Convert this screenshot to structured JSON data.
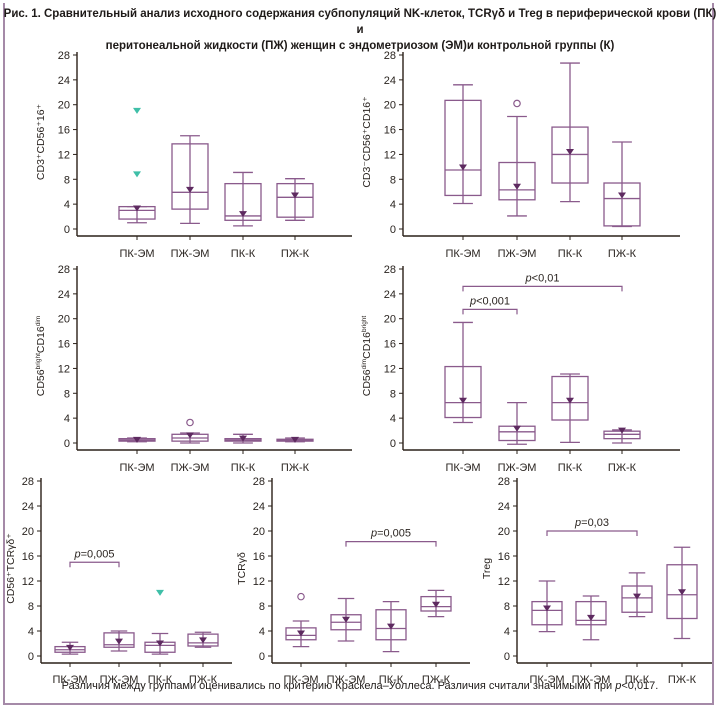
{
  "figure": {
    "title_line1": "Рис. 1. Сравнительный анализ исходного содержания субпопуляций NK-клеток, TCRγδ и Treg в периферической крови (ПК) и",
    "title_line2": "перитонеальной жидкости (ПЖ) женщин с эндометриозом  (ЭМ)и контрольной группы (К)",
    "footnote_prefix": "Различия между группами оценивались по критерию Краскела–Уоллеса. Различия считали значимыми при ",
    "footnote_p": "p",
    "footnote_suffix": "<0,017."
  },
  "colors": {
    "box": "#8a5a8c",
    "mean_marker": "#5e2a60",
    "outlier_extreme": "#3fbfa8",
    "axis": "#2a2018",
    "frame": "#a58aa8",
    "bracket": "#8a5a8c"
  },
  "chart_data": [
    {
      "type": "boxplot",
      "id": "cd3-cd56-16",
      "ylabel": "CD3⁺CD56⁺16⁺",
      "ylim": [
        0,
        28
      ],
      "yticks": [
        0,
        4,
        8,
        12,
        16,
        20,
        24,
        28
      ],
      "categories": [
        "ПК-ЭМ",
        "ПЖ-ЭМ",
        "ПК-К",
        "ПЖ-К"
      ],
      "boxes": [
        {
          "whisker_low": 1.0,
          "q1": 1.6,
          "median": 3.0,
          "q3": 3.6,
          "whisker_high": 3.6,
          "mean": 3.3,
          "outliers": [],
          "extremes": [
            19.0,
            8.8
          ]
        },
        {
          "whisker_low": 0.9,
          "q1": 3.2,
          "median": 5.9,
          "q3": 13.7,
          "whisker_high": 15.0,
          "mean": 6.3,
          "outliers": [],
          "extremes": []
        },
        {
          "whisker_low": 0.5,
          "q1": 1.4,
          "median": 2.1,
          "q3": 7.3,
          "whisker_high": 9.1,
          "mean": 2.4,
          "outliers": [],
          "extremes": []
        },
        {
          "whisker_low": 1.4,
          "q1": 1.9,
          "median": 5.1,
          "q3": 7.3,
          "whisker_high": 8.1,
          "mean": 5.4,
          "outliers": [],
          "extremes": []
        }
      ],
      "annotations": []
    },
    {
      "type": "boxplot",
      "id": "cd3neg-cd56-16",
      "ylabel": "CD3⁻CD56⁺CD16⁺",
      "ylim": [
        0,
        28
      ],
      "yticks": [
        0,
        4,
        8,
        12,
        16,
        20,
        24,
        28
      ],
      "categories": [
        "ПК-ЭМ",
        "ПЖ-ЭМ",
        "ПК-К",
        "ПЖ-К"
      ],
      "boxes": [
        {
          "whisker_low": 4.1,
          "q1": 5.4,
          "median": 9.5,
          "q3": 20.7,
          "whisker_high": 23.2,
          "mean": 9.9,
          "outliers": [],
          "extremes": []
        },
        {
          "whisker_low": 2.1,
          "q1": 4.7,
          "median": 6.3,
          "q3": 10.7,
          "whisker_high": 18.1,
          "mean": 6.8,
          "outliers": [
            20.2
          ],
          "extremes": []
        },
        {
          "whisker_low": 4.4,
          "q1": 7.4,
          "median": 12.0,
          "q3": 16.4,
          "whisker_high": 26.7,
          "mean": 12.4,
          "outliers": [],
          "extremes": []
        },
        {
          "whisker_low": 0.4,
          "q1": 0.5,
          "median": 4.9,
          "q3": 7.4,
          "whisker_high": 14.0,
          "mean": 5.4,
          "outliers": [],
          "extremes": []
        }
      ],
      "annotations": []
    },
    {
      "type": "boxplot",
      "id": "cd56bright-cd16dim",
      "ylabel": "CD56",
      "ylabel_sup1": "bright",
      "ylabel_mid": "CD16",
      "ylabel_sup2": "dim",
      "ylim": [
        0,
        28
      ],
      "yticks": [
        0,
        4,
        8,
        12,
        16,
        20,
        24,
        28
      ],
      "categories": [
        "ПК-ЭМ",
        "ПЖ-ЭМ",
        "ПК-К",
        "ПЖ-К"
      ],
      "boxes": [
        {
          "whisker_low": 0.2,
          "q1": 0.3,
          "median": 0.5,
          "q3": 0.7,
          "whisker_high": 0.8,
          "mean": 0.5,
          "outliers": [],
          "extremes": []
        },
        {
          "whisker_low": 0.0,
          "q1": 0.3,
          "median": 0.8,
          "q3": 1.4,
          "whisker_high": 1.6,
          "mean": 1.2,
          "outliers": [
            3.3
          ],
          "extremes": []
        },
        {
          "whisker_low": 0.0,
          "q1": 0.3,
          "median": 0.5,
          "q3": 0.7,
          "whisker_high": 1.4,
          "mean": 0.7,
          "outliers": [],
          "extremes": []
        },
        {
          "whisker_low": 0.2,
          "q1": 0.3,
          "median": 0.5,
          "q3": 0.6,
          "whisker_high": 0.8,
          "mean": 0.5,
          "outliers": [],
          "extremes": []
        }
      ],
      "annotations": []
    },
    {
      "type": "boxplot",
      "id": "cd56dim-cd16bright",
      "ylabel": "CD56",
      "ylabel_sup1": "dim",
      "ylabel_mid": "CD16",
      "ylabel_sup2": "bright",
      "ylim": [
        0,
        28
      ],
      "yticks": [
        0,
        4,
        8,
        12,
        16,
        20,
        24,
        28
      ],
      "categories": [
        "ПК-ЭМ",
        "ПЖ-ЭМ",
        "ПК-К",
        "ПЖ-К"
      ],
      "boxes": [
        {
          "whisker_low": 3.3,
          "q1": 4.1,
          "median": 6.5,
          "q3": 12.3,
          "whisker_high": 19.4,
          "mean": 6.8,
          "outliers": [],
          "extremes": []
        },
        {
          "whisker_low": -0.2,
          "q1": 0.4,
          "median": 1.8,
          "q3": 2.7,
          "whisker_high": 6.5,
          "mean": 2.3,
          "outliers": [],
          "extremes": []
        },
        {
          "whisker_low": 0.1,
          "q1": 3.7,
          "median": 6.5,
          "q3": 10.7,
          "whisker_high": 11.1,
          "mean": 6.8,
          "outliers": [],
          "extremes": []
        },
        {
          "whisker_low": 0.0,
          "q1": 0.7,
          "median": 1.4,
          "q3": 1.9,
          "whisker_high": 2.1,
          "mean": 2.0,
          "outliers": [],
          "extremes": []
        }
      ],
      "annotations": [
        {
          "from": 0,
          "to": 1,
          "y": 21.5,
          "p_italic": "p",
          "text": "<0,001"
        },
        {
          "from": 0,
          "to": 3,
          "y": 25.2,
          "p_italic": "p",
          "text": "<0,01"
        }
      ]
    },
    {
      "type": "boxplot",
      "id": "cd56-tcrgd",
      "ylabel": "CD56⁺TCRγδ⁺",
      "ylim": [
        0,
        28
      ],
      "yticks": [
        0,
        4,
        8,
        12,
        16,
        20,
        24,
        28
      ],
      "categories": [
        "ПК-ЭМ",
        "ПЖ-ЭМ",
        "ПК-К",
        "ПЖ-К"
      ],
      "boxes": [
        {
          "whisker_low": 0.3,
          "q1": 0.6,
          "median": 1.0,
          "q3": 1.5,
          "whisker_high": 2.2,
          "mean": 1.3,
          "outliers": [],
          "extremes": []
        },
        {
          "whisker_low": 0.8,
          "q1": 1.4,
          "median": 1.8,
          "q3": 3.7,
          "whisker_high": 4.0,
          "mean": 2.3,
          "outliers": [],
          "extremes": []
        },
        {
          "whisker_low": 0.3,
          "q1": 0.6,
          "median": 1.7,
          "q3": 2.2,
          "whisker_high": 3.6,
          "mean": 2.0,
          "outliers": [],
          "extremes": [
            10.1
          ]
        },
        {
          "whisker_low": 1.4,
          "q1": 1.6,
          "median": 2.1,
          "q3": 3.5,
          "whisker_high": 3.8,
          "mean": 2.5,
          "outliers": [],
          "extremes": []
        }
      ],
      "annotations": [
        {
          "from": 0,
          "to": 1,
          "y": 15.0,
          "p_italic": "p",
          "text": "=0,005"
        }
      ]
    },
    {
      "type": "boxplot",
      "id": "tcrgd",
      "ylabel": "TCRγδ",
      "ylim": [
        0,
        28
      ],
      "yticks": [
        0,
        4,
        8,
        12,
        16,
        20,
        24,
        28
      ],
      "categories": [
        "ПК-ЭМ",
        "ПЖ-ЭМ",
        "ПК-К",
        "ПЖ-К"
      ],
      "boxes": [
        {
          "whisker_low": 1.5,
          "q1": 2.6,
          "median": 3.3,
          "q3": 4.5,
          "whisker_high": 5.6,
          "mean": 3.6,
          "outliers": [
            9.5
          ],
          "extremes": []
        },
        {
          "whisker_low": 2.4,
          "q1": 4.2,
          "median": 5.4,
          "q3": 6.6,
          "whisker_high": 9.2,
          "mean": 5.8,
          "outliers": [],
          "extremes": []
        },
        {
          "whisker_low": 0.7,
          "q1": 2.6,
          "median": 4.4,
          "q3": 7.4,
          "whisker_high": 8.7,
          "mean": 4.7,
          "outliers": [],
          "extremes": []
        },
        {
          "whisker_low": 6.3,
          "q1": 7.2,
          "median": 7.9,
          "q3": 9.5,
          "whisker_high": 10.5,
          "mean": 8.2,
          "outliers": [],
          "extremes": []
        }
      ],
      "annotations": [
        {
          "from": 1,
          "to": 3,
          "y": 18.3,
          "p_italic": "p",
          "text": "=0,005"
        }
      ]
    },
    {
      "type": "boxplot",
      "id": "treg",
      "ylabel": "Treg",
      "ylim": [
        0,
        28
      ],
      "yticks": [
        0,
        4,
        8,
        12,
        16,
        20,
        24,
        28
      ],
      "categories": [
        "ПК-ЭМ",
        "ПЖ-ЭМ",
        "ПК-К",
        "ПЖ-К"
      ],
      "boxes": [
        {
          "whisker_low": 3.9,
          "q1": 5.0,
          "median": 7.3,
          "q3": 8.7,
          "whisker_high": 12.0,
          "mean": 7.6,
          "outliers": [],
          "extremes": []
        },
        {
          "whisker_low": 2.6,
          "q1": 5.0,
          "median": 5.7,
          "q3": 8.7,
          "whisker_high": 9.6,
          "mean": 6.1,
          "outliers": [],
          "extremes": []
        },
        {
          "whisker_low": 6.3,
          "q1": 7.0,
          "median": 9.3,
          "q3": 11.2,
          "whisker_high": 13.3,
          "mean": 9.5,
          "outliers": [],
          "extremes": []
        },
        {
          "whisker_low": 2.8,
          "q1": 6.0,
          "median": 9.8,
          "q3": 14.6,
          "whisker_high": 17.4,
          "mean": 10.2,
          "outliers": [],
          "extremes": []
        }
      ],
      "annotations": [
        {
          "from": 0,
          "to": 2,
          "y": 20.0,
          "p_italic": "p",
          "text": "=0,03"
        }
      ]
    }
  ]
}
